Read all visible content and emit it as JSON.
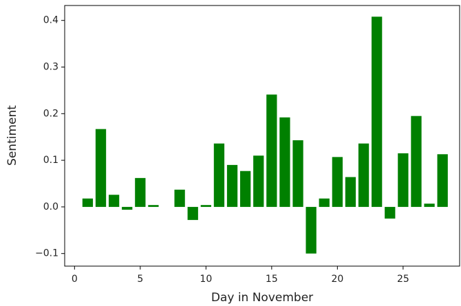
{
  "chart_data": {
    "type": "bar",
    "x_label": "Day in November",
    "y_label": "Sentiment",
    "x": [
      1,
      2,
      3,
      4,
      5,
      6,
      8,
      9,
      10,
      11,
      12,
      13,
      14,
      15,
      16,
      17,
      18,
      19,
      20,
      21,
      22,
      23,
      24,
      25,
      26,
      27,
      28
    ],
    "values": [
      0.018,
      0.167,
      0.026,
      -0.006,
      0.062,
      0.004,
      0.037,
      -0.028,
      0.004,
      0.136,
      0.09,
      0.077,
      0.11,
      0.241,
      0.192,
      0.143,
      -0.1,
      0.018,
      0.107,
      0.064,
      0.136,
      0.408,
      -0.025,
      0.115,
      0.195,
      0.007,
      0.113
    ],
    "color": "#008000",
    "xlim": [
      -0.75,
      29.3
    ],
    "xticks": [
      0,
      5,
      10,
      15,
      20,
      25
    ],
    "ylim": [
      -0.127,
      0.432
    ],
    "yticks": [
      {
        "value": -0.1,
        "label": "−0.1"
      },
      {
        "value": 0,
        "label": "0.0"
      },
      0.1,
      0.2,
      0.3,
      0.4
    ],
    "grid": false
  }
}
